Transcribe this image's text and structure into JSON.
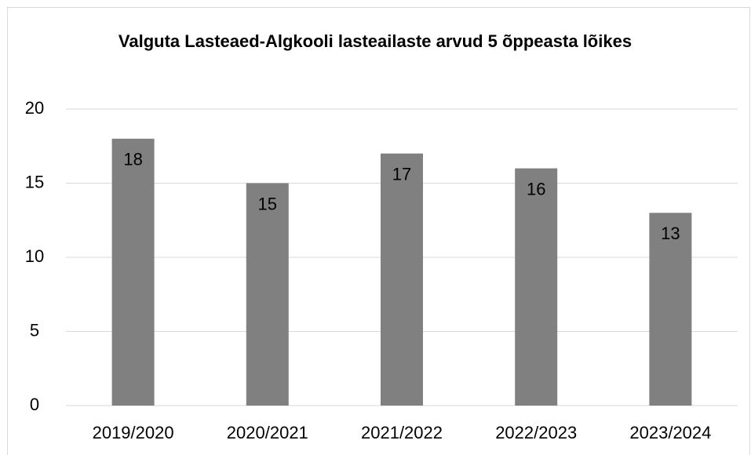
{
  "chart_data": {
    "type": "bar",
    "title": "Valguta Lasteaed-Algkooli lasteailaste arvud 5 õppeasta lõikes",
    "categories": [
      "2019/2020",
      "2020/2021",
      "2021/2022",
      "2022/2023",
      "2023/2024"
    ],
    "values": [
      18,
      15,
      17,
      16,
      13
    ],
    "color": "#808080",
    "ylim": [
      0,
      20
    ],
    "yticks": [
      0,
      5,
      10,
      15,
      20
    ],
    "grid": true
  }
}
